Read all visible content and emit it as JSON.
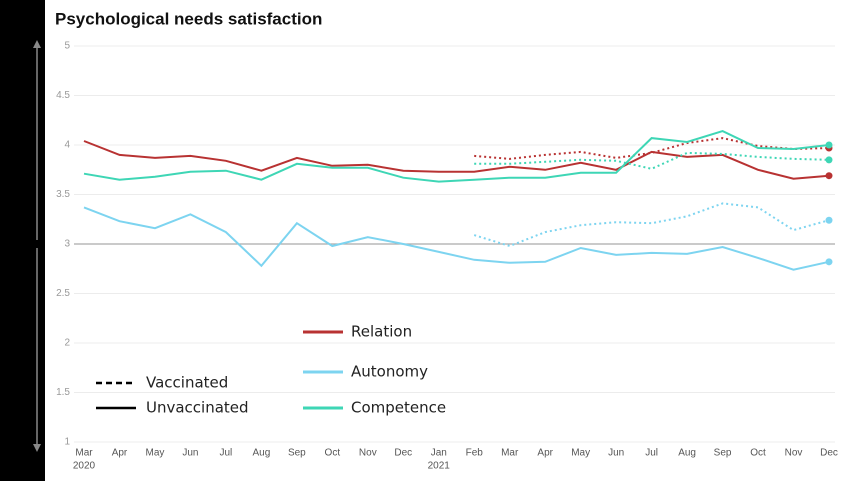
{
  "chart_data": {
    "type": "line",
    "title": "Psychological needs satisfaction",
    "categories": [
      "Mar",
      "Apr",
      "May",
      "Jun",
      "Jul",
      "Aug",
      "Sep",
      "Oct",
      "Nov",
      "Dec",
      "Jan",
      "Feb",
      "Mar",
      "Apr",
      "May",
      "Jun",
      "Jul",
      "Aug",
      "Sep",
      "Oct",
      "Nov",
      "Dec"
    ],
    "category_years": [
      "2020",
      null,
      null,
      null,
      null,
      null,
      null,
      null,
      null,
      null,
      "2021",
      null,
      null,
      null,
      null,
      null,
      null,
      null,
      null,
      null,
      null,
      null
    ],
    "ylim": [
      1,
      5
    ],
    "yticks": [
      1,
      1.5,
      2,
      2.5,
      3,
      3.5,
      4,
      4.5,
      5
    ],
    "grid": true,
    "reference_line": 3,
    "line_styles": [
      {
        "name": "Vaccinated",
        "dashed": true
      },
      {
        "name": "Unvaccinated",
        "dashed": false
      }
    ],
    "series": [
      {
        "name": "Relation",
        "color": "#b83232",
        "values": [
          4.04,
          3.9,
          3.87,
          3.89,
          3.84,
          3.74,
          3.87,
          3.79,
          3.8,
          3.74,
          3.73,
          3.73,
          3.78,
          3.75,
          3.82,
          3.75,
          3.93,
          3.88,
          3.9,
          3.75,
          3.66,
          3.69
        ],
        "vaccinated_values": [
          null,
          null,
          null,
          null,
          null,
          null,
          null,
          null,
          null,
          null,
          null,
          3.89,
          3.86,
          3.9,
          3.93,
          3.87,
          3.92,
          4.02,
          4.07,
          3.99,
          3.96,
          3.97
        ]
      },
      {
        "name": "Autonomy",
        "color": "#7dd4f0",
        "values": [
          3.37,
          3.23,
          3.16,
          3.3,
          3.12,
          2.78,
          3.21,
          2.98,
          3.07,
          3.0,
          2.92,
          2.84,
          2.81,
          2.82,
          2.96,
          2.89,
          2.91,
          2.9,
          2.97,
          2.86,
          2.74,
          2.82
        ],
        "vaccinated_values": [
          null,
          null,
          null,
          null,
          null,
          null,
          null,
          null,
          null,
          null,
          null,
          3.09,
          2.98,
          3.12,
          3.19,
          3.22,
          3.21,
          3.28,
          3.41,
          3.37,
          3.14,
          3.24
        ]
      },
      {
        "name": "Competence",
        "color": "#3ed6b5",
        "values": [
          3.71,
          3.65,
          3.68,
          3.73,
          3.74,
          3.65,
          3.81,
          3.77,
          3.77,
          3.67,
          3.63,
          3.65,
          3.67,
          3.67,
          3.72,
          3.72,
          4.07,
          4.03,
          4.14,
          3.97,
          3.96,
          4.0
        ],
        "vaccinated_values": [
          null,
          null,
          null,
          null,
          null,
          null,
          null,
          null,
          null,
          null,
          null,
          3.81,
          3.81,
          3.83,
          3.85,
          3.84,
          3.76,
          3.92,
          3.91,
          3.88,
          3.86,
          3.85
        ]
      }
    ]
  }
}
